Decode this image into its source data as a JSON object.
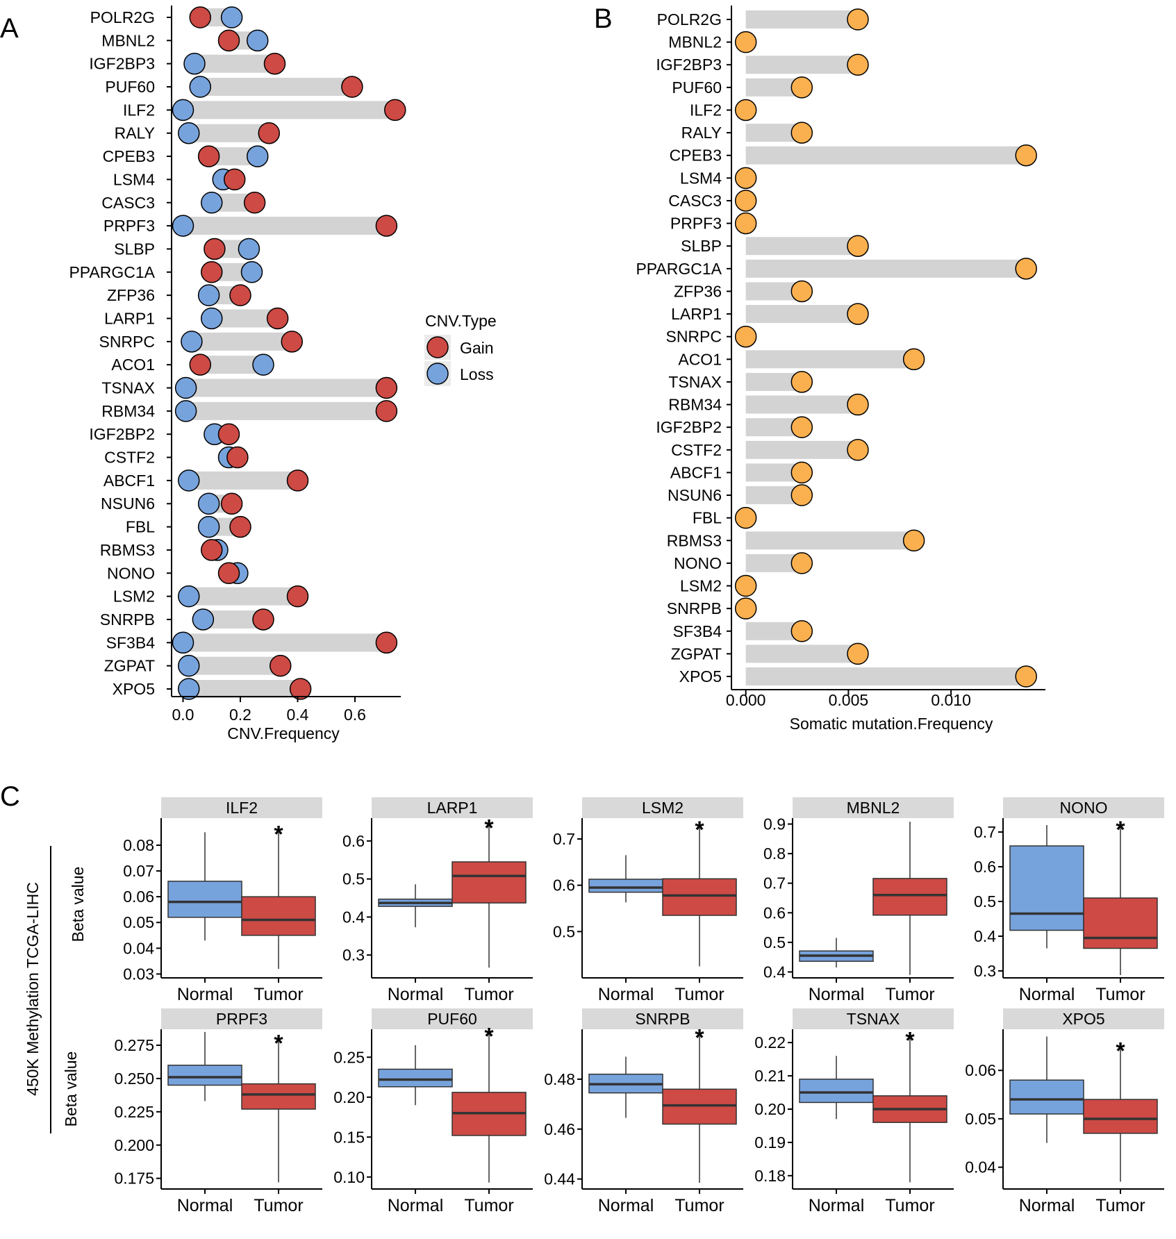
{
  "panel_labels": {
    "a": "A",
    "b": "B",
    "c": "C"
  },
  "colors": {
    "gain": "#cd4a45",
    "loss": "#77a3dd",
    "mutation": "#fbb04f",
    "bar": "#d3d3d3",
    "strip": "#d9d9d9",
    "normal_box": "#77a3dd",
    "tumor_box": "#cd4a45"
  },
  "chart_data": [
    {
      "type": "dumbbell",
      "panel": "A",
      "xlabel": "CNV.Frequency",
      "xticks": [
        "0.0",
        "0.2",
        "0.4",
        "0.6"
      ],
      "xlim": [
        -0.04,
        0.76
      ],
      "legend": {
        "title": "CNV.Type",
        "items": [
          "Gain",
          "Loss"
        ],
        "position": "right"
      },
      "genes": [
        "POLR2G",
        "MBNL2",
        "IGF2BP3",
        "PUF60",
        "ILF2",
        "RALY",
        "CPEB3",
        "LSM4",
        "CASC3",
        "PRPF3",
        "SLBP",
        "PPARGC1A",
        "ZFP36",
        "LARP1",
        "SNRPC",
        "ACO1",
        "TSNAX",
        "RBM34",
        "IGF2BP2",
        "CSTF2",
        "ABCF1",
        "NSUN6",
        "FBL",
        "RBMS3",
        "NONO",
        "LSM2",
        "SNRPB",
        "SF3B4",
        "ZGPAT",
        "XPO5"
      ],
      "series": [
        {
          "name": "Gain",
          "values": [
            0.06,
            0.16,
            0.32,
            0.59,
            0.74,
            0.3,
            0.09,
            0.18,
            0.25,
            0.71,
            0.11,
            0.1,
            0.2,
            0.33,
            0.38,
            0.06,
            0.71,
            0.71,
            0.16,
            0.19,
            0.4,
            0.17,
            0.2,
            0.1,
            0.16,
            0.4,
            0.28,
            0.71,
            0.34,
            0.41
          ]
        },
        {
          "name": "Loss",
          "values": [
            0.17,
            0.26,
            0.04,
            0.06,
            0.0,
            0.02,
            0.26,
            0.14,
            0.1,
            0.0,
            0.23,
            0.24,
            0.09,
            0.1,
            0.03,
            0.28,
            0.01,
            0.01,
            0.11,
            0.16,
            0.02,
            0.09,
            0.09,
            0.12,
            0.19,
            0.02,
            0.07,
            0.0,
            0.02,
            0.02
          ]
        }
      ]
    },
    {
      "type": "lollipop",
      "panel": "B",
      "xlabel": "Somatic mutation.Frequency",
      "xticks": [
        "0.000",
        "0.005",
        "0.010"
      ],
      "xlim": [
        -0.0007,
        0.0146
      ],
      "genes": [
        "POLR2G",
        "MBNL2",
        "IGF2BP3",
        "PUF60",
        "ILF2",
        "RALY",
        "CPEB3",
        "LSM4",
        "CASC3",
        "PRPF3",
        "SLBP",
        "PPARGC1A",
        "ZFP36",
        "LARP1",
        "SNRPC",
        "ACO1",
        "TSNAX",
        "RBM34",
        "IGF2BP2",
        "CSTF2",
        "ABCF1",
        "NSUN6",
        "FBL",
        "RBMS3",
        "NONO",
        "LSM2",
        "SNRPB",
        "SF3B4",
        "ZGPAT",
        "XPO5"
      ],
      "values": [
        0.00546,
        0,
        0.00546,
        0.00273,
        0,
        0.00273,
        0.01366,
        0,
        0,
        0,
        0.00546,
        0.01366,
        0.00273,
        0.00546,
        0,
        0.00819,
        0.00273,
        0.00546,
        0.00273,
        0.00546,
        0.00273,
        0.00273,
        0,
        0.00819,
        0.00273,
        0,
        0,
        0.00273,
        0.00546,
        0.01366
      ]
    },
    {
      "type": "boxplot",
      "panel": "C",
      "side_label": "450K Methylation TCGA-LIHC",
      "ylabel": "Beta value",
      "categories": [
        "Normal",
        "Tumor"
      ],
      "panels": [
        {
          "gene": "ILF2",
          "ylim": [
            0.0285,
            0.0905
          ],
          "ticks": [
            0.03,
            0.04,
            0.05,
            0.06,
            0.07,
            0.08
          ],
          "labels": [
            "0.03",
            "0.04",
            "0.05",
            "0.06",
            "0.07",
            "0.08"
          ],
          "star": "*",
          "normal": {
            "min": 0.043,
            "q1": 0.052,
            "median": 0.058,
            "q3": 0.066,
            "max": 0.085
          },
          "tumor": {
            "min": 0.032,
            "q1": 0.045,
            "median": 0.051,
            "q3": 0.06,
            "max": 0.086
          }
        },
        {
          "gene": "LARP1",
          "ylim": [
            0.24,
            0.66
          ],
          "ticks": [
            0.3,
            0.4,
            0.5,
            0.6
          ],
          "labels": [
            "0.3",
            "0.4",
            "0.5",
            "0.6"
          ],
          "star": "*",
          "normal": {
            "min": 0.373,
            "q1": 0.428,
            "median": 0.437,
            "q3": 0.447,
            "max": 0.486
          },
          "tumor": {
            "min": 0.267,
            "q1": 0.437,
            "median": 0.508,
            "q3": 0.545,
            "max": 0.646
          }
        },
        {
          "gene": "LSM2",
          "ylim": [
            0.4,
            0.745
          ],
          "ticks": [
            0.5,
            0.6,
            0.7
          ],
          "labels": [
            "0.5",
            "0.6",
            "0.7"
          ],
          "star": "*",
          "normal": {
            "min": 0.563,
            "q1": 0.585,
            "median": 0.595,
            "q3": 0.613,
            "max": 0.665
          },
          "tumor": {
            "min": 0.425,
            "q1": 0.535,
            "median": 0.578,
            "q3": 0.614,
            "max": 0.73
          }
        },
        {
          "gene": "MBNL2",
          "ylim": [
            0.38,
            0.92
          ],
          "ticks": [
            0.4,
            0.5,
            0.6,
            0.7,
            0.8,
            0.9
          ],
          "labels": [
            "0.4",
            "0.5",
            "0.6",
            "0.7",
            "0.8",
            "0.9"
          ],
          "star": "",
          "normal": {
            "min": 0.415,
            "q1": 0.436,
            "median": 0.455,
            "q3": 0.471,
            "max": 0.515
          },
          "tumor": {
            "min": 0.39,
            "q1": 0.592,
            "median": 0.66,
            "q3": 0.716,
            "max": 0.908
          }
        },
        {
          "gene": "NONO",
          "ylim": [
            0.28,
            0.74
          ],
          "ticks": [
            0.3,
            0.4,
            0.5,
            0.6,
            0.7
          ],
          "labels": [
            "0.3",
            "0.4",
            "0.5",
            "0.6",
            "0.7"
          ],
          "star": "*",
          "normal": {
            "min": 0.365,
            "q1": 0.417,
            "median": 0.465,
            "q3": 0.66,
            "max": 0.72
          },
          "tumor": {
            "min": 0.288,
            "q1": 0.365,
            "median": 0.395,
            "q3": 0.51,
            "max": 0.72
          }
        },
        {
          "gene": "PRPF3",
          "ylim": [
            0.167,
            0.287
          ],
          "ticks": [
            0.175,
            0.2,
            0.225,
            0.25,
            0.275
          ],
          "labels": [
            "0.175",
            "0.200",
            "0.225",
            "0.250",
            "0.275"
          ],
          "star": "*",
          "normal": {
            "min": 0.233,
            "q1": 0.245,
            "median": 0.251,
            "q3": 0.26,
            "max": 0.285
          },
          "tumor": {
            "min": 0.172,
            "q1": 0.227,
            "median": 0.238,
            "q3": 0.246,
            "max": 0.28
          }
        },
        {
          "gene": "PUF60",
          "ylim": [
            0.085,
            0.285
          ],
          "ticks": [
            0.1,
            0.15,
            0.2,
            0.25
          ],
          "labels": [
            "0.10",
            "0.15",
            "0.20",
            "0.25"
          ],
          "star": "*",
          "normal": {
            "min": 0.19,
            "q1": 0.213,
            "median": 0.222,
            "q3": 0.235,
            "max": 0.265
          },
          "tumor": {
            "min": 0.093,
            "q1": 0.152,
            "median": 0.18,
            "q3": 0.206,
            "max": 0.282
          }
        },
        {
          "gene": "SNRPB",
          "ylim": [
            0.436,
            0.5
          ],
          "ticks": [
            0.44,
            0.46,
            0.48
          ],
          "labels": [
            "0.44",
            "0.46",
            "0.48"
          ],
          "star": "*",
          "normal": {
            "min": 0.4645,
            "q1": 0.4745,
            "median": 0.478,
            "q3": 0.482,
            "max": 0.489
          },
          "tumor": {
            "min": 0.4385,
            "q1": 0.462,
            "median": 0.4695,
            "q3": 0.476,
            "max": 0.4985
          }
        },
        {
          "gene": "TSNAX",
          "ylim": [
            0.176,
            0.224
          ],
          "ticks": [
            0.18,
            0.19,
            0.2,
            0.21,
            0.22
          ],
          "labels": [
            "0.18",
            "0.19",
            "0.20",
            "0.21",
            "0.22"
          ],
          "star": "*",
          "normal": {
            "min": 0.197,
            "q1": 0.202,
            "median": 0.205,
            "q3": 0.209,
            "max": 0.216
          },
          "tumor": {
            "min": 0.178,
            "q1": 0.196,
            "median": 0.2,
            "q3": 0.204,
            "max": 0.222
          }
        },
        {
          "gene": "XPO5",
          "ylim": [
            0.0355,
            0.0685
          ],
          "ticks": [
            0.04,
            0.05,
            0.06
          ],
          "labels": [
            "0.04",
            "0.05",
            "0.06"
          ],
          "star": "*",
          "normal": {
            "min": 0.045,
            "q1": 0.051,
            "median": 0.054,
            "q3": 0.058,
            "max": 0.067
          },
          "tumor": {
            "min": 0.037,
            "q1": 0.047,
            "median": 0.05,
            "q3": 0.054,
            "max": 0.065
          }
        }
      ]
    }
  ]
}
